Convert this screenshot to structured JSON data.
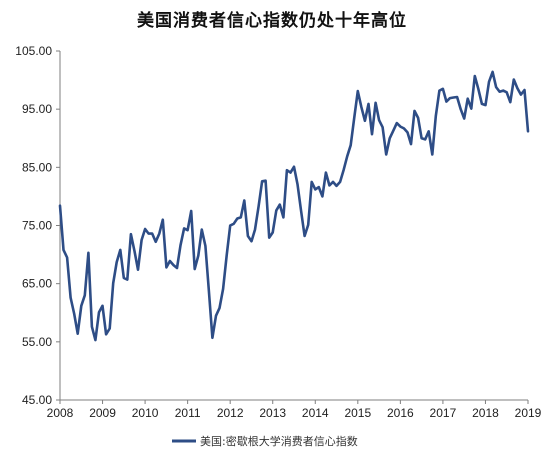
{
  "chart_data": {
    "type": "line",
    "title": "美国消费者信心指数仍处十年高位",
    "xlabel": "",
    "ylabel": "",
    "ylim": [
      45,
      105
    ],
    "xlim": [
      2008,
      2019
    ],
    "y_ticks": [
      "45.00",
      "55.00",
      "65.00",
      "75.00",
      "85.00",
      "95.00",
      "105.00"
    ],
    "x_ticks": [
      "2008",
      "2009",
      "2010",
      "2011",
      "2012",
      "2013",
      "2014",
      "2015",
      "2016",
      "2017",
      "2018",
      "2019"
    ],
    "grid": false,
    "legend_position": "bottom",
    "line_color": "#2e4d86",
    "series": [
      {
        "name": "美国:密歇根大学消费者信心指数",
        "x": [
          2008.0,
          2008.083,
          2008.167,
          2008.25,
          2008.333,
          2008.417,
          2008.5,
          2008.583,
          2008.667,
          2008.75,
          2008.833,
          2008.917,
          2009.0,
          2009.083,
          2009.167,
          2009.25,
          2009.333,
          2009.417,
          2009.5,
          2009.583,
          2009.667,
          2009.75,
          2009.833,
          2009.917,
          2010.0,
          2010.083,
          2010.167,
          2010.25,
          2010.333,
          2010.417,
          2010.5,
          2010.583,
          2010.667,
          2010.75,
          2010.833,
          2010.917,
          2011.0,
          2011.083,
          2011.167,
          2011.25,
          2011.333,
          2011.417,
          2011.5,
          2011.583,
          2011.667,
          2011.75,
          2011.833,
          2011.917,
          2012.0,
          2012.083,
          2012.167,
          2012.25,
          2012.333,
          2012.417,
          2012.5,
          2012.583,
          2012.667,
          2012.75,
          2012.833,
          2012.917,
          2013.0,
          2013.083,
          2013.167,
          2013.25,
          2013.333,
          2013.417,
          2013.5,
          2013.583,
          2013.667,
          2013.75,
          2013.833,
          2013.917,
          2014.0,
          2014.083,
          2014.167,
          2014.25,
          2014.333,
          2014.417,
          2014.5,
          2014.583,
          2014.667,
          2014.75,
          2014.833,
          2014.917,
          2015.0,
          2015.083,
          2015.167,
          2015.25,
          2015.333,
          2015.417,
          2015.5,
          2015.583,
          2015.667,
          2015.75,
          2015.833,
          2015.917,
          2016.0,
          2016.083,
          2016.167,
          2016.25,
          2016.333,
          2016.417,
          2016.5,
          2016.583,
          2016.667,
          2016.75,
          2016.833,
          2016.917,
          2017.0,
          2017.083,
          2017.167,
          2017.25,
          2017.333,
          2017.417,
          2017.5,
          2017.583,
          2017.667,
          2017.75,
          2017.833,
          2017.917,
          2018.0,
          2018.083,
          2018.167,
          2018.25,
          2018.333,
          2018.417,
          2018.5,
          2018.583,
          2018.667,
          2018.75,
          2018.833,
          2018.917,
          2019.0
        ],
        "values": [
          78.4,
          70.8,
          69.5,
          62.6,
          59.8,
          56.4,
          61.2,
          63.0,
          70.3,
          57.6,
          55.3,
          60.1,
          61.2,
          56.3,
          57.3,
          65.1,
          68.7,
          70.8,
          66.0,
          65.7,
          73.5,
          70.6,
          67.4,
          72.5,
          74.4,
          73.6,
          73.6,
          72.2,
          73.6,
          76.0,
          67.8,
          68.9,
          68.2,
          67.7,
          71.6,
          74.5,
          74.2,
          77.5,
          67.5,
          69.8,
          74.3,
          71.5,
          63.7,
          55.7,
          59.5,
          60.8,
          64.1,
          69.9,
          75.0,
          75.3,
          76.2,
          76.4,
          79.3,
          73.2,
          72.3,
          74.3,
          78.3,
          82.6,
          82.7,
          72.9,
          73.8,
          77.6,
          78.6,
          76.4,
          84.5,
          84.1,
          85.1,
          82.1,
          77.5,
          73.2,
          75.1,
          82.5,
          81.2,
          81.6,
          80.0,
          84.1,
          81.9,
          82.5,
          81.8,
          82.5,
          84.6,
          86.9,
          88.8,
          93.6,
          98.1,
          95.4,
          93.0,
          95.9,
          90.7,
          96.1,
          93.1,
          91.9,
          87.2,
          90.0,
          91.3,
          92.6,
          92.0,
          91.7,
          91.0,
          89.0,
          94.7,
          93.5,
          90.0,
          89.8,
          91.2,
          87.2,
          93.8,
          98.2,
          98.5,
          96.3,
          96.9,
          97.0,
          97.1,
          95.0,
          93.4,
          96.8,
          95.1,
          100.7,
          98.5,
          95.9,
          95.7,
          99.7,
          101.4,
          98.8,
          98.0,
          98.2,
          97.9,
          96.2,
          100.1,
          98.6,
          97.5,
          98.3,
          91.2
        ]
      }
    ]
  }
}
